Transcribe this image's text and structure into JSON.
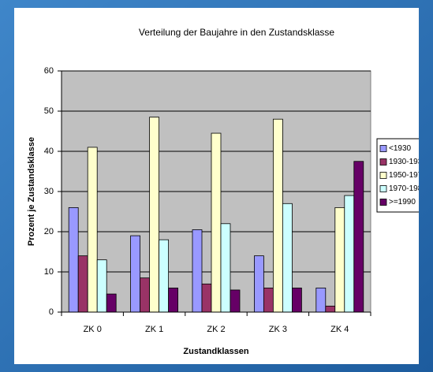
{
  "chart_data": {
    "type": "bar",
    "title": "Verteilung der Baujahre in den Zustandsklasse",
    "x_label": "Zustandklassen",
    "y_label": "Prozent je Zustandsklasse",
    "categories": [
      "ZK 0",
      "ZK 1",
      "ZK 2",
      "ZK 3",
      "ZK 4"
    ],
    "series": [
      {
        "name": "<1930",
        "color": "#9999ff",
        "values": [
          26,
          19,
          20.5,
          14,
          6
        ]
      },
      {
        "name": "1930-193",
        "color": "#993366",
        "values": [
          14,
          8.5,
          7,
          6,
          1.5
        ]
      },
      {
        "name": "1950-197",
        "color": "#ffffcc",
        "values": [
          41,
          48.5,
          44.5,
          48,
          26
        ]
      },
      {
        "name": "1970-198",
        "color": "#ccffff",
        "values": [
          13,
          18,
          22,
          27,
          29
        ]
      },
      {
        "name": ">=1990",
        "color": "#660066",
        "values": [
          4.5,
          6,
          5.5,
          6,
          37.5
        ]
      }
    ],
    "ylim": [
      0,
      60
    ],
    "yticks": [
      0,
      10,
      20,
      30,
      40,
      50,
      60
    ],
    "grid": true,
    "legend": "right"
  }
}
